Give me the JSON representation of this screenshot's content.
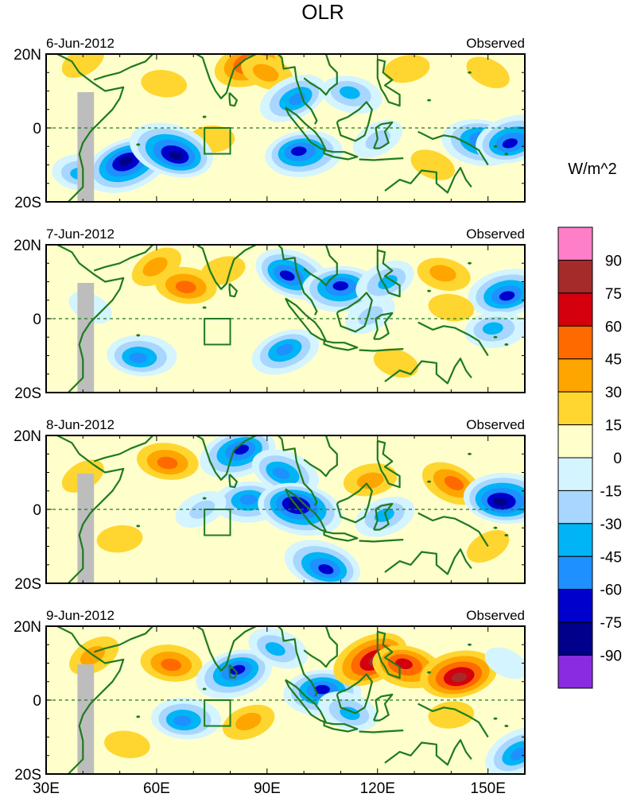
{
  "title": "OLR",
  "units": "W/m^2",
  "panels": [
    {
      "date": "6-Jun-2012",
      "label": "Observed"
    },
    {
      "date": "7-Jun-2012",
      "label": "Observed"
    },
    {
      "date": "8-Jun-2012",
      "label": "Observed"
    },
    {
      "date": "9-Jun-2012",
      "label": "Observed"
    }
  ],
  "lat_ticks": [
    "20N",
    "0",
    "20S"
  ],
  "lon_ticks": [
    "30E",
    "60E",
    "90E",
    "120E",
    "150E"
  ],
  "colorbar": {
    "labels": [
      "90",
      "75",
      "60",
      "45",
      "30",
      "15",
      "0",
      "-15",
      "-30",
      "-45",
      "-60",
      "-75",
      "-90"
    ],
    "colors": [
      "#ff7ec8",
      "#a52a2a",
      "#d4000d",
      "#ff6a00",
      "#ffa500",
      "#ffd52f",
      "#ffffcc",
      "#d4f4ff",
      "#a8d6ff",
      "#00b4f5",
      "#1e90ff",
      "#0000cd",
      "#00008b",
      "#8a2be2"
    ]
  },
  "chart_data": {
    "type": "heatmap",
    "title": "OLR",
    "colorbar_label": "W/m^2",
    "extent": {
      "lon_min": 30,
      "lon_max": 160,
      "lat_min": -20,
      "lat_max": 20
    },
    "levels": [
      -90,
      -75,
      -60,
      -45,
      -30,
      -15,
      0,
      15,
      30,
      45,
      60,
      75,
      90
    ],
    "box_region": {
      "lon": [
        73,
        80
      ],
      "lat": [
        -7,
        0
      ]
    },
    "panels": [
      {
        "date": "6-Jun-2012",
        "source": "Observed",
        "anomalies": [
          {
            "lon": 40,
            "lat": 18,
            "value": 20
          },
          {
            "lon": 62,
            "lat": 12,
            "value": 28
          },
          {
            "lon": 85,
            "lat": 17,
            "value": 70
          },
          {
            "lon": 90,
            "lat": 15,
            "value": 35
          },
          {
            "lon": 75,
            "lat": -3,
            "value": 25
          },
          {
            "lon": 97,
            "lat": 8,
            "value": -65
          },
          {
            "lon": 113,
            "lat": 9,
            "value": -45
          },
          {
            "lon": 128,
            "lat": 16,
            "value": 25
          },
          {
            "lon": 150,
            "lat": 15,
            "value": 25
          },
          {
            "lon": 40,
            "lat": -12,
            "value": -45
          },
          {
            "lon": 52,
            "lat": -10,
            "value": -90
          },
          {
            "lon": 64,
            "lat": -6,
            "value": -90
          },
          {
            "lon": 100,
            "lat": -7,
            "value": -75
          },
          {
            "lon": 120,
            "lat": -3,
            "value": -35
          },
          {
            "lon": 148,
            "lat": -4,
            "value": -80
          },
          {
            "lon": 157,
            "lat": -3,
            "value": -85
          },
          {
            "lon": 135,
            "lat": -10,
            "value": 20
          },
          {
            "lon": 80,
            "lat": -13,
            "value": 12
          }
        ]
      },
      {
        "date": "7-Jun-2012",
        "source": "Observed",
        "anomalies": [
          {
            "lon": 60,
            "lat": 14,
            "value": 30
          },
          {
            "lon": 68,
            "lat": 9,
            "value": 45
          },
          {
            "lon": 78,
            "lat": 13,
            "value": 25
          },
          {
            "lon": 97,
            "lat": 12,
            "value": -80
          },
          {
            "lon": 110,
            "lat": 8,
            "value": -75
          },
          {
            "lon": 122,
            "lat": 10,
            "value": -55
          },
          {
            "lon": 138,
            "lat": 12,
            "value": 40
          },
          {
            "lon": 155,
            "lat": 7,
            "value": -85
          },
          {
            "lon": 42,
            "lat": 3,
            "value": -25
          },
          {
            "lon": 56,
            "lat": -10,
            "value": -70
          },
          {
            "lon": 95,
            "lat": -9,
            "value": -70
          },
          {
            "lon": 125,
            "lat": -12,
            "value": 15
          },
          {
            "lon": 152,
            "lat": -3,
            "value": -55
          },
          {
            "lon": 118,
            "lat": 1,
            "value": -40
          },
          {
            "lon": 140,
            "lat": 3,
            "value": 20
          }
        ]
      },
      {
        "date": "8-Jun-2012",
        "source": "Observed",
        "anomalies": [
          {
            "lon": 40,
            "lat": 9,
            "value": 25
          },
          {
            "lon": 63,
            "lat": 13,
            "value": 45
          },
          {
            "lon": 82,
            "lat": 15,
            "value": -75
          },
          {
            "lon": 95,
            "lat": 10,
            "value": -65
          },
          {
            "lon": 85,
            "lat": 2,
            "value": -70
          },
          {
            "lon": 72,
            "lat": 0,
            "value": -30
          },
          {
            "lon": 99,
            "lat": 0,
            "value": -90
          },
          {
            "lon": 118,
            "lat": 8,
            "value": 40
          },
          {
            "lon": 140,
            "lat": 7,
            "value": 45
          },
          {
            "lon": 155,
            "lat": 3,
            "value": -90
          },
          {
            "lon": 122,
            "lat": -2,
            "value": -50
          },
          {
            "lon": 105,
            "lat": -15,
            "value": -80
          },
          {
            "lon": 50,
            "lat": -8,
            "value": 18
          },
          {
            "lon": 150,
            "lat": -10,
            "value": 15
          }
        ]
      },
      {
        "date": "9-Jun-2012",
        "source": "Observed",
        "anomalies": [
          {
            "lon": 43,
            "lat": 12,
            "value": 30
          },
          {
            "lon": 64,
            "lat": 10,
            "value": 55
          },
          {
            "lon": 81,
            "lat": 7,
            "value": -80
          },
          {
            "lon": 93,
            "lat": 14,
            "value": -45
          },
          {
            "lon": 105,
            "lat": 2,
            "value": -80
          },
          {
            "lon": 118,
            "lat": 11,
            "value": 75
          },
          {
            "lon": 128,
            "lat": 9,
            "value": 60
          },
          {
            "lon": 142,
            "lat": 7,
            "value": 75
          },
          {
            "lon": 155,
            "lat": 10,
            "value": -20
          },
          {
            "lon": 68,
            "lat": -5,
            "value": -60
          },
          {
            "lon": 85,
            "lat": -6,
            "value": 40
          },
          {
            "lon": 112,
            "lat": -3,
            "value": -45
          },
          {
            "lon": 140,
            "lat": -4,
            "value": 20
          },
          {
            "lon": 158,
            "lat": -14,
            "value": -65
          },
          {
            "lon": 52,
            "lat": -12,
            "value": 15
          }
        ]
      }
    ]
  }
}
